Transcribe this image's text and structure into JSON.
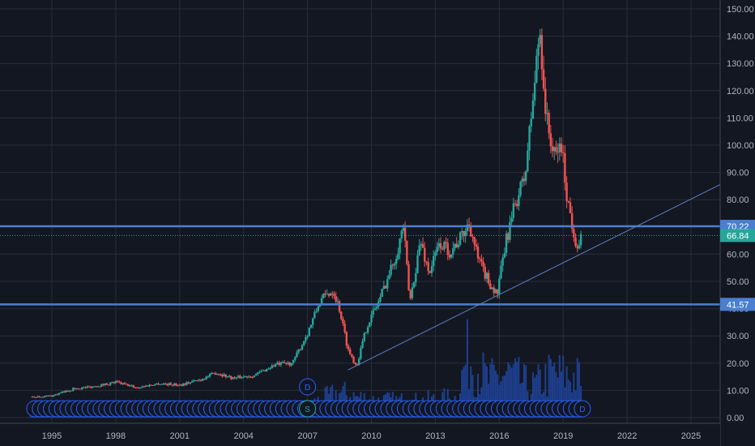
{
  "colors": {
    "background": "#131722",
    "grid": "#2a2e39",
    "up": "#26a69a",
    "down": "#ef5350",
    "volume": "#1e3f8f",
    "hline": "#4a7fd1",
    "trendline": "#5b7fc0",
    "last_price": "#26a69a",
    "axis_text": "#b2b5be"
  },
  "chart_data": {
    "type": "candlestick",
    "x_range": [
      1993.8,
      2027.0
    ],
    "y_range": [
      0,
      150
    ],
    "x_ticks": [
      "1995",
      "1998",
      "2001",
      "2004",
      "2007",
      "2010",
      "2013",
      "2016",
      "2019",
      "2022",
      "2025"
    ],
    "x_tick_years": [
      1995,
      1998,
      2001,
      2004,
      2007,
      2010,
      2013,
      2016,
      2019,
      2022,
      2025
    ],
    "y_ticks": [
      "150.00",
      "140.00",
      "130.00",
      "120.00",
      "110.00",
      "100.00",
      "90.00",
      "80.00",
      "70.00",
      "60.00",
      "50.00",
      "40.00",
      "30.00",
      "20.00",
      "10.00",
      "0.00"
    ],
    "y_tick_values": [
      150,
      140,
      130,
      120,
      110,
      100,
      90,
      80,
      70,
      60,
      50,
      40,
      30,
      20,
      10,
      0
    ],
    "horizontal_levels": [
      {
        "label": "70.22",
        "value": 70.22
      },
      {
        "label": "41.57",
        "value": 41.57
      }
    ],
    "last_price": {
      "label": "66.84",
      "value": 66.84
    },
    "trendline": {
      "start": [
        2008.9,
        17.5
      ],
      "end": [
        2027.0,
        88.0
      ]
    },
    "price_path": [
      [
        1994.0,
        7.5
      ],
      [
        1995.0,
        8.0
      ],
      [
        1996.0,
        10.5
      ],
      [
        1997.0,
        11.5
      ],
      [
        1998.0,
        13.0
      ],
      [
        1999.0,
        11.0
      ],
      [
        2000.0,
        12.5
      ],
      [
        2001.0,
        12.0
      ],
      [
        2002.0,
        14.0
      ],
      [
        2002.7,
        16.5
      ],
      [
        2003.5,
        14.5
      ],
      [
        2004.5,
        15.5
      ],
      [
        2005.5,
        19.5
      ],
      [
        2006.3,
        20.0
      ],
      [
        2007.0,
        31.0
      ],
      [
        2007.6,
        43.0
      ],
      [
        2008.2,
        47.0
      ],
      [
        2008.5,
        40.0
      ],
      [
        2008.9,
        25.0
      ],
      [
        2009.3,
        19.0
      ],
      [
        2009.8,
        34.0
      ],
      [
        2010.3,
        42.0
      ],
      [
        2010.8,
        52.0
      ],
      [
        2011.2,
        61.0
      ],
      [
        2011.5,
        70.5
      ],
      [
        2011.8,
        42.0
      ],
      [
        2012.3,
        65.0
      ],
      [
        2012.7,
        53.0
      ],
      [
        2013.2,
        64.0
      ],
      [
        2013.7,
        61.0
      ],
      [
        2014.2,
        66.0
      ],
      [
        2014.6,
        71.5
      ],
      [
        2015.0,
        58.0
      ],
      [
        2015.5,
        50.0
      ],
      [
        2015.9,
        45.0
      ],
      [
        2016.3,
        64.0
      ],
      [
        2016.8,
        80.0
      ],
      [
        2017.2,
        88.0
      ],
      [
        2017.6,
        118.0
      ],
      [
        2017.9,
        143.0
      ],
      [
        2018.2,
        110.0
      ],
      [
        2018.6,
        95.0
      ],
      [
        2018.9,
        101.0
      ],
      [
        2019.2,
        80.0
      ],
      [
        2019.5,
        68.0
      ],
      [
        2019.7,
        62.0
      ],
      [
        2019.9,
        66.84
      ]
    ],
    "volume_path": [
      [
        1994.0,
        2.0
      ],
      [
        2006.5,
        3.0
      ],
      [
        2007.0,
        5.0
      ],
      [
        2008.5,
        10.0
      ],
      [
        2010.0,
        7.0
      ],
      [
        2012.0,
        6.5
      ],
      [
        2014.0,
        8.0
      ],
      [
        2014.5,
        25.0
      ],
      [
        2015.5,
        15.0
      ],
      [
        2016.5,
        18.0
      ],
      [
        2017.5,
        12.0
      ],
      [
        2018.5,
        18.0
      ],
      [
        2019.9,
        16.0
      ]
    ],
    "volume_ticks": [
      "30.00",
      "20.00",
      "10.00",
      "0.00"
    ],
    "markers": {
      "dividend_label": "D",
      "split_label": "S",
      "dividend_start_year": 1994.2,
      "dividend_end_year": 2019.9,
      "dividend_count": 100,
      "upper_dividend_year": 2007.0,
      "split_year": 2007.0,
      "last_marker_label": "D"
    }
  }
}
